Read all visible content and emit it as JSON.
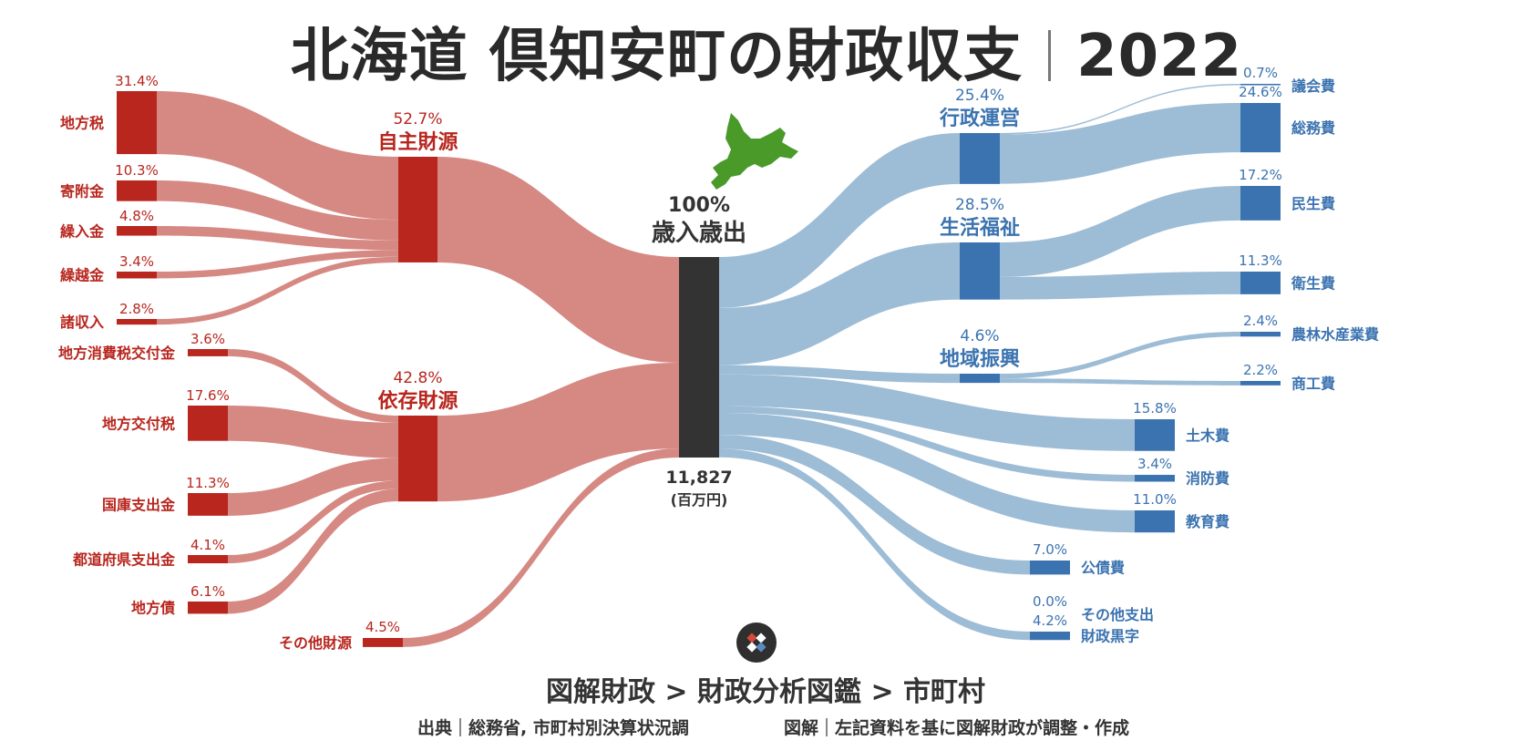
{
  "title": {
    "prefix": "北海道 倶知安町の財政収支",
    "year": "2022"
  },
  "center": {
    "percent": "100%",
    "label": "歳入歳出",
    "total": "11,827",
    "unit": "(百万円)"
  },
  "breadcrumb": "図解財政 > 財政分析図鑑 > 市町村",
  "credit": {
    "source_label": "出典",
    "source_text": "総務省, 市町村別決算状況調",
    "chart_label": "図解",
    "chart_text": "左記資料を基に図解財政が調整・作成"
  },
  "colors": {
    "revenue_node": "#b8261e",
    "revenue_flow": "#d68883",
    "revenue_text": "#b8261e",
    "expense_node": "#3b73b0",
    "expense_flow": "#9dbcd6",
    "expense_text": "#3b73b0",
    "center_node": "#333333"
  },
  "chart_data": {
    "type": "sankey",
    "unit": "%",
    "revenue_groups": [
      {
        "name": "自主財源",
        "pct": "52.7%",
        "value": 52.7,
        "items": [
          {
            "name": "地方税",
            "pct": "31.4%",
            "value": 31.4
          },
          {
            "name": "寄附金",
            "pct": "10.3%",
            "value": 10.3
          },
          {
            "name": "繰入金",
            "pct": "4.8%",
            "value": 4.8
          },
          {
            "name": "繰越金",
            "pct": "3.4%",
            "value": 3.4
          },
          {
            "name": "諸収入",
            "pct": "2.8%",
            "value": 2.8
          }
        ]
      },
      {
        "name": "依存財源",
        "pct": "42.8%",
        "value": 42.8,
        "items": [
          {
            "name": "地方消費税交付金",
            "pct": "3.6%",
            "value": 3.6
          },
          {
            "name": "地方交付税",
            "pct": "17.6%",
            "value": 17.6
          },
          {
            "name": "国庫支出金",
            "pct": "11.3%",
            "value": 11.3
          },
          {
            "name": "都道府県支出金",
            "pct": "4.1%",
            "value": 4.1
          },
          {
            "name": "地方債",
            "pct": "6.1%",
            "value": 6.1
          }
        ]
      }
    ],
    "revenue_other": {
      "name": "その他財源",
      "pct": "4.5%",
      "value": 4.5
    },
    "expense_groups": [
      {
        "name": "行政運営",
        "pct": "25.4%",
        "value": 25.4,
        "items": [
          {
            "name": "議会費",
            "pct": "0.7%",
            "value": 0.7
          },
          {
            "name": "総務費",
            "pct": "24.6%",
            "value": 24.6
          }
        ]
      },
      {
        "name": "生活福祉",
        "pct": "28.5%",
        "value": 28.5,
        "items": [
          {
            "name": "民生費",
            "pct": "17.2%",
            "value": 17.2
          },
          {
            "name": "衛生費",
            "pct": "11.3%",
            "value": 11.3
          }
        ]
      },
      {
        "name": "地域振興",
        "pct": "4.6%",
        "value": 4.6,
        "items": [
          {
            "name": "農林水産業費",
            "pct": "2.4%",
            "value": 2.4
          },
          {
            "name": "商工費",
            "pct": "2.2%",
            "value": 2.2
          }
        ]
      }
    ],
    "expense_direct": [
      {
        "name": "土木費",
        "pct": "15.8%",
        "value": 15.8
      },
      {
        "name": "消防費",
        "pct": "3.4%",
        "value": 3.4
      },
      {
        "name": "教育費",
        "pct": "11.0%",
        "value": 11.0
      },
      {
        "name": "公債費",
        "pct": "7.0%",
        "value": 7.0
      },
      {
        "name": "その他支出",
        "pct": "0.0%",
        "value": 0.0
      },
      {
        "name": "財政黒字",
        "pct": "4.2%",
        "value": 4.2
      }
    ]
  }
}
